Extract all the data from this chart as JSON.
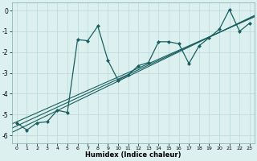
{
  "xlabel": "Humidex (Indice chaleur)",
  "background_color": "#cce8e8",
  "plot_bg_color": "#ddf0f0",
  "line_color": "#1a5f5f",
  "grid_color": "#b8d8d8",
  "xlim": [
    -0.5,
    23.5
  ],
  "ylim": [
    -6.4,
    0.4
  ],
  "xticks": [
    0,
    1,
    2,
    3,
    4,
    5,
    6,
    7,
    8,
    9,
    10,
    11,
    12,
    13,
    14,
    15,
    16,
    17,
    18,
    19,
    20,
    21,
    22,
    23
  ],
  "yticks": [
    0,
    -1,
    -2,
    -3,
    -4,
    -5,
    -6
  ],
  "main_x": [
    0,
    1,
    2,
    3,
    4,
    5,
    6,
    7,
    8,
    9,
    10,
    11,
    12,
    13,
    14,
    15,
    16,
    17,
    18,
    19,
    20,
    21,
    22,
    23
  ],
  "main_y": [
    -5.4,
    -5.75,
    -5.4,
    -5.35,
    -4.8,
    -4.9,
    -1.4,
    -1.45,
    -0.75,
    -2.4,
    -3.35,
    -3.1,
    -2.65,
    -2.5,
    -1.5,
    -1.5,
    -1.6,
    -2.55,
    -1.7,
    -1.3,
    -0.9,
    0.05,
    -1.0,
    -0.6
  ],
  "reg_slope1": 0.225,
  "reg_intercept1": -5.55,
  "reg_slope2": 0.215,
  "reg_intercept2": -5.35,
  "reg_slope3": 0.235,
  "reg_intercept3": -5.75
}
